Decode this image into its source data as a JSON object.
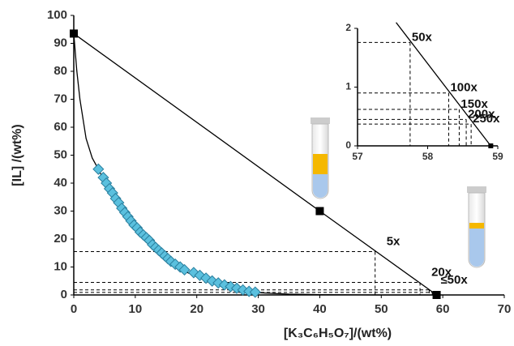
{
  "chart_data": [
    {
      "type": "scatter",
      "xlabel": "[K₃C₆H₅O₇]/(wt%)",
      "ylabel": "[IL] /(wt%)",
      "xlim": [
        0,
        70
      ],
      "xticks": [
        0,
        10,
        20,
        30,
        40,
        50,
        60,
        70
      ],
      "ylim": [
        0,
        100
      ],
      "yticks": [
        0,
        10,
        20,
        30,
        40,
        50,
        60,
        70,
        80,
        90,
        100
      ],
      "series": [
        {
          "color": "#000000",
          "line": true,
          "x": [
            0,
            0.5,
            1,
            2,
            3,
            4,
            6,
            8,
            10,
            12,
            15,
            18,
            20,
            22,
            25,
            28,
            30,
            35,
            40,
            50,
            59
          ],
          "values": [
            93.5,
            80,
            70,
            56,
            49,
            45,
            36,
            29,
            23.5,
            19,
            13,
            8.5,
            6.5,
            4.5,
            2.5,
            1.3,
            0.8,
            0.3,
            0.1,
            0,
            0
          ]
        },
        {
          "color": "#5bc0de",
          "marker": "diamond",
          "x": [
            4,
            4.8,
            5.3,
            5.8,
            6.3,
            6.8,
            7.3,
            7.8,
            8.3,
            8.8,
            9.3,
            9.8,
            10.3,
            10.8,
            11.3,
            11.8,
            12.3,
            12.8,
            13.3,
            13.8,
            14.3,
            14.8,
            15.3,
            15.8,
            16.5,
            17.3,
            18,
            19.5,
            20.5,
            21.5,
            22.5,
            23.5,
            24.5,
            25.5,
            26.5,
            27.5,
            28.5,
            29.5
          ],
          "values": [
            45,
            42,
            40,
            38,
            36.5,
            34.5,
            33,
            31,
            29.5,
            28,
            26.5,
            25,
            24,
            22.5,
            21.5,
            20.5,
            19.5,
            18,
            17,
            16,
            15,
            14,
            13,
            12,
            11,
            10,
            9,
            8,
            7,
            6,
            5,
            4.3,
            3.6,
            3,
            2.4,
            1.8,
            1.3,
            1
          ]
        },
        {
          "color": "#000000",
          "line": true,
          "marker": "square",
          "x": [
            0,
            40,
            59
          ],
          "values": [
            93.5,
            30,
            0
          ]
        }
      ],
      "guides": [
        {
          "x": 49,
          "y": 15.5,
          "label": "5x"
        },
        {
          "x": 56.3,
          "y": 4.5,
          "label": "20x"
        },
        {
          "x": 57.8,
          "y": 1.8,
          "label": "≤50x"
        },
        {
          "x": 58.3,
          "y": 0.9
        }
      ]
    },
    {
      "type": "scatter",
      "xlim": [
        57,
        59
      ],
      "xticks": [
        57,
        58,
        59
      ],
      "ylim": [
        0,
        2
      ],
      "yticks": [
        0,
        1,
        2
      ],
      "series": [
        {
          "color": "#000000",
          "line": true,
          "x": [
            57.55,
            58.9
          ],
          "values": [
            2.1,
            0
          ]
        },
        {
          "color": "#000000",
          "marker": "square",
          "x": [
            58.9
          ],
          "values": [
            0
          ]
        }
      ],
      "guides": [
        {
          "x": 57.75,
          "y": 1.76,
          "label": "50x"
        },
        {
          "x": 58.3,
          "y": 0.9,
          "label": "100x"
        },
        {
          "x": 58.45,
          "y": 0.62,
          "label": "150x"
        },
        {
          "x": 58.55,
          "y": 0.45,
          "label": "200x"
        },
        {
          "x": 58.62,
          "y": 0.37,
          "label": "250x"
        }
      ]
    }
  ]
}
